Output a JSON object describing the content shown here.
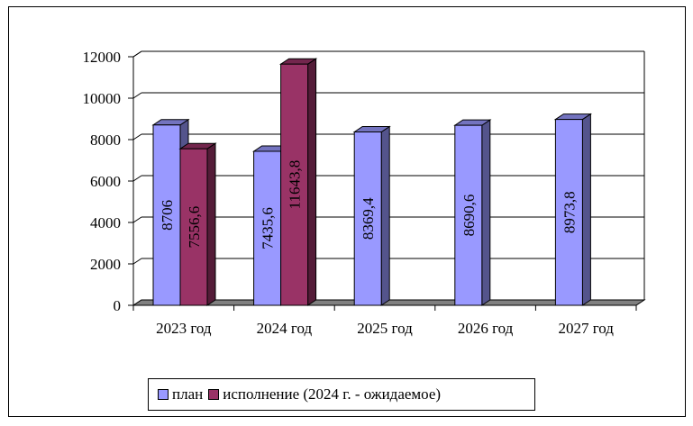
{
  "chart_data": {
    "type": "bar",
    "categories": [
      "2023 год",
      "2024 год",
      "2025 год",
      "2026 год",
      "2027 год"
    ],
    "series": [
      {
        "name": "план",
        "values": [
          8706,
          7435.6,
          8369.4,
          8690.6,
          8973.8
        ],
        "labels": [
          "8706",
          "7435,6",
          "8369,4",
          "8690,6",
          "8973,8"
        ],
        "color": "#9999ff"
      },
      {
        "name": "исполнение  (2024 г. - ожидаемое)",
        "values": [
          7556.6,
          11643.8,
          null,
          null,
          null
        ],
        "labels": [
          "7556,6",
          "11643,8",
          "",
          "",
          ""
        ],
        "color": "#993366"
      }
    ],
    "y_ticks": [
      "0",
      "2000",
      "4000",
      "6000",
      "8000",
      "10000",
      "12000"
    ],
    "ylim": [
      0,
      12000
    ],
    "grid": true,
    "legend_position": "bottom",
    "style": "3d-clustered-column"
  }
}
